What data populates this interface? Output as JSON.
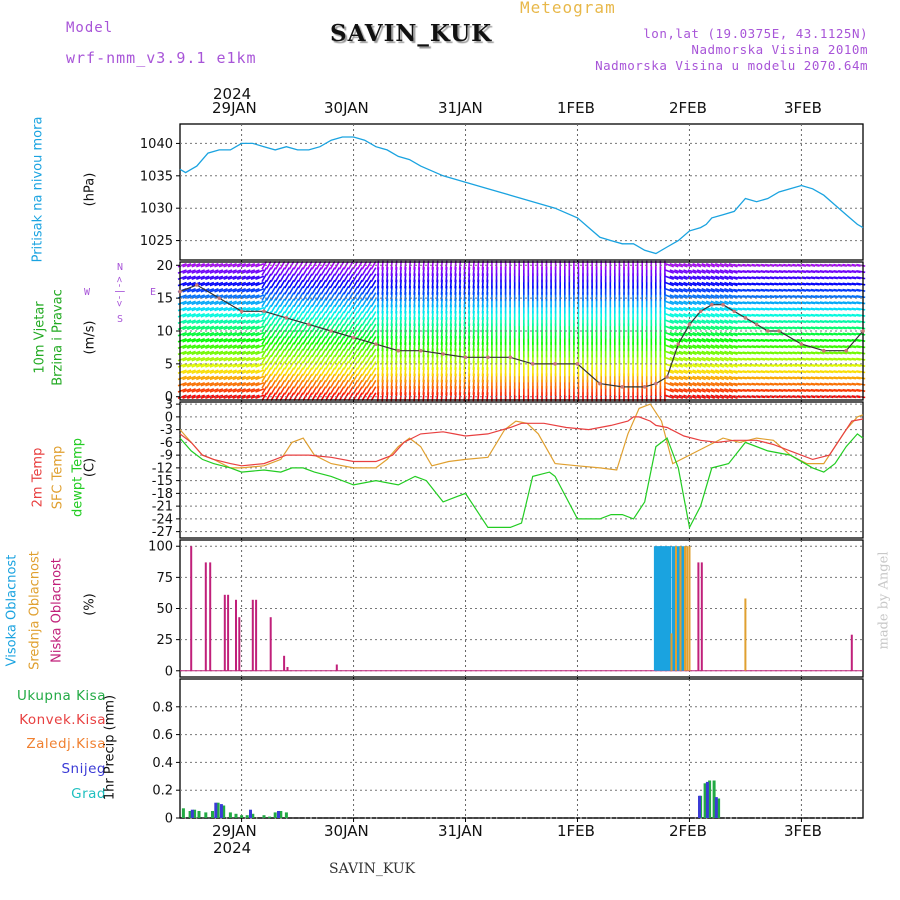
{
  "header": {
    "model_label": "Model",
    "model_name": "wrf-nmm_v3.9.1 e1km",
    "station_title": "SAVIN_KUK",
    "meteogram_label": "Meteogram",
    "lonlat": "lon,lat (19.0375E, 43.1125N)",
    "altitude": "Nadmorska Visina 2010m",
    "model_altitude": "Nadmorska Visina u modelu 2070.64m",
    "year_top": "2024",
    "year_bottom": "2024",
    "footer_station": "SAVIN_KUK",
    "watermark": "made by Angel"
  },
  "days": [
    "29JAN",
    "30JAN",
    "31JAN",
    "1FEB",
    "2FEB",
    "3FEB"
  ],
  "panel_labels": {
    "pressure": [
      "Pritisak na nivou mora",
      "(hPa)"
    ],
    "wind": [
      "10m Vjetar",
      "Brzina i Pravac",
      "(m/s)"
    ],
    "compass": [
      "W",
      "<-|->",
      "E",
      "N",
      "S"
    ],
    "temp": [
      "2m Temp",
      "SFC Temp",
      "dewpt Temp",
      "(C)"
    ],
    "cloud": [
      "Visoka Oblacnost",
      "Srednja Oblacnost",
      "Niska Oblacnost",
      "(%)"
    ],
    "precip": [
      "Ukupna Kisa",
      "Konvek.Kisa",
      "Zaledj.Kisa",
      "Snijeg",
      "Grad",
      "1hr Precip (mm)"
    ]
  },
  "colors": {
    "pressure": "#1aa3e0",
    "temp2m": "#e84040",
    "sfc": "#e0a030",
    "dewpt": "#22cc22",
    "cloud_high": "#1aa3e0",
    "cloud_mid": "#e0a030",
    "cloud_low": "#c0207a",
    "rain_total": "#22aa44",
    "convective": "#e84040",
    "freezing": "#f08030",
    "snow": "#3b3bd6",
    "hail": "#20c0c0",
    "purple_text": "#a855d8",
    "gold_text": "#e8b84a"
  },
  "chart_data": [
    {
      "type": "line",
      "name": "pressure",
      "x_unit": "days from 00 UTC 29JAN",
      "xlim": [
        -0.55,
        5.55
      ],
      "ylim": [
        1022,
        1043
      ],
      "yticks": [
        1025,
        1030,
        1035,
        1040
      ],
      "ylabel": "(hPa)",
      "series": [
        {
          "name": "Pritisak na nivou mora",
          "x": [
            -0.55,
            -0.5,
            -0.45,
            -0.4,
            -0.3,
            -0.2,
            -0.1,
            0,
            0.1,
            0.2,
            0.3,
            0.4,
            0.5,
            0.6,
            0.7,
            0.8,
            0.9,
            1.0,
            1.1,
            1.2,
            1.3,
            1.4,
            1.5,
            1.6,
            1.8,
            2.0,
            2.2,
            2.4,
            2.6,
            2.8,
            3.0,
            3.1,
            3.2,
            3.3,
            3.4,
            3.5,
            3.6,
            3.7,
            3.8,
            3.9,
            4.0,
            4.1,
            4.15,
            4.2,
            4.3,
            4.4,
            4.5,
            4.6,
            4.7,
            4.8,
            4.9,
            5.0,
            5.1,
            5.2,
            5.3,
            5.4,
            5.5,
            5.55
          ],
          "y": [
            1036,
            1035.5,
            1036,
            1036.5,
            1038.5,
            1039,
            1039,
            1040,
            1040,
            1039.5,
            1039,
            1039.5,
            1039,
            1039,
            1039.5,
            1040.5,
            1041,
            1041,
            1040.5,
            1039.5,
            1039,
            1038,
            1037.5,
            1036.5,
            1035,
            1034,
            1033,
            1032,
            1031,
            1030,
            1028.5,
            1027,
            1025.5,
            1025,
            1024.5,
            1024.5,
            1023.5,
            1023,
            1024,
            1025,
            1026.5,
            1027,
            1027.5,
            1028.5,
            1029,
            1029.5,
            1031.5,
            1031,
            1031.5,
            1032.5,
            1033,
            1033.5,
            1033,
            1032,
            1030.5,
            1029,
            1027.5,
            1027
          ]
        }
      ]
    },
    {
      "type": "line",
      "name": "wind",
      "x_unit": "days from 00 UTC 29JAN",
      "xlim": [
        -0.55,
        5.55
      ],
      "ylim": [
        -0.5,
        20.5
      ],
      "yticks": [
        0,
        5,
        10,
        15,
        20
      ],
      "ylabel": "(m/s)",
      "series": [
        {
          "name": "Brzina",
          "x": [
            -0.55,
            -0.4,
            -0.2,
            0,
            0.2,
            0.4,
            0.6,
            0.8,
            1.0,
            1.2,
            1.4,
            1.6,
            1.8,
            2.0,
            2.2,
            2.4,
            2.6,
            2.8,
            3.0,
            3.2,
            3.4,
            3.6,
            3.7,
            3.8,
            3.9,
            4.0,
            4.1,
            4.2,
            4.3,
            4.4,
            4.5,
            4.6,
            4.7,
            4.8,
            5.0,
            5.2,
            5.4,
            5.55
          ],
          "y": [
            16,
            17,
            15,
            13,
            13,
            12,
            11,
            10,
            9,
            8,
            7,
            7,
            6.5,
            6,
            6,
            6,
            5,
            5,
            5,
            2,
            1.5,
            1.5,
            2,
            3,
            8,
            11,
            13,
            14,
            14,
            13,
            12,
            11,
            10,
            10,
            8,
            7,
            7,
            10
          ]
        }
      ],
      "barb_direction": [
        {
          "from": -0.55,
          "to": 0.2,
          "dir_deg": 200
        },
        {
          "from": 0.2,
          "to": 1.2,
          "dir_deg": 240
        },
        {
          "from": 1.2,
          "to": 2.2,
          "dir_deg": 265
        },
        {
          "from": 2.2,
          "to": 3.8,
          "dir_deg": 90
        },
        {
          "from": 3.8,
          "to": 4.4,
          "dir_deg": 160
        },
        {
          "from": 4.4,
          "to": 5.55,
          "dir_deg": 350
        }
      ]
    },
    {
      "type": "line",
      "name": "temperature",
      "x_unit": "days from 00 UTC 29JAN",
      "xlim": [
        -0.55,
        5.55
      ],
      "ylim": [
        -28.5,
        3.5
      ],
      "yticks": [
        3,
        0,
        -3,
        -6,
        -9,
        -12,
        -15,
        -18,
        -21,
        -24,
        -27
      ],
      "ylabel": "(C)",
      "series": [
        {
          "name": "2m Temp",
          "x": [
            -0.55,
            -0.45,
            -0.35,
            -0.25,
            -0.1,
            0,
            0.2,
            0.3,
            0.4,
            0.6,
            0.8,
            1.0,
            1.2,
            1.35,
            1.45,
            1.6,
            1.8,
            1.9,
            2.0,
            2.2,
            2.4,
            2.5,
            2.7,
            2.9,
            3.1,
            3.3,
            3.45,
            3.5,
            3.55,
            3.65,
            3.7,
            3.8,
            3.95,
            4.1,
            4.25,
            4.4,
            4.6,
            4.75,
            4.9,
            5.1,
            5.25,
            5.35,
            5.45,
            5.55
          ],
          "y": [
            -4,
            -6,
            -9,
            -10,
            -11,
            -11.5,
            -11,
            -10,
            -9,
            -9,
            -9.5,
            -10.5,
            -10.5,
            -9,
            -6,
            -4,
            -3.5,
            -4,
            -4.5,
            -4,
            -2.5,
            -1.5,
            -1.5,
            -2.5,
            -3,
            -2,
            -1,
            0,
            0,
            -1,
            -2,
            -2.5,
            -4.5,
            -5.5,
            -6,
            -5.5,
            -5.5,
            -6.5,
            -8,
            -10,
            -9,
            -5,
            -1,
            -0.5
          ]
        },
        {
          "name": "SFC Temp",
          "x": [
            -0.55,
            -0.45,
            -0.35,
            -0.25,
            -0.1,
            0,
            0.2,
            0.35,
            0.45,
            0.55,
            0.65,
            0.8,
            1.0,
            1.2,
            1.3,
            1.4,
            1.5,
            1.6,
            1.7,
            1.85,
            2.0,
            2.2,
            2.35,
            2.45,
            2.55,
            2.65,
            2.8,
            3.0,
            3.2,
            3.35,
            3.45,
            3.55,
            3.65,
            3.75,
            3.85,
            4.0,
            4.15,
            4.3,
            4.45,
            4.6,
            4.75,
            4.9,
            5.05,
            5.2,
            5.3,
            5.4,
            5.5,
            5.55
          ],
          "y": [
            -3,
            -6,
            -9,
            -10,
            -12,
            -12,
            -11.5,
            -10,
            -6,
            -5,
            -9,
            -11,
            -12,
            -12,
            -10,
            -7,
            -5,
            -7,
            -11.5,
            -10.5,
            -10,
            -9.5,
            -3,
            -1,
            -1.5,
            -4,
            -11,
            -11.5,
            -12,
            -12.5,
            -4,
            2,
            3,
            -1,
            -11,
            -9,
            -7,
            -5,
            -6,
            -5,
            -5.5,
            -9,
            -11,
            -11,
            -7,
            -3,
            0,
            0.5
          ]
        },
        {
          "name": "dewpt Temp",
          "x": [
            -0.55,
            -0.45,
            -0.35,
            -0.25,
            -0.1,
            0,
            0.2,
            0.35,
            0.45,
            0.55,
            0.65,
            0.8,
            1.0,
            1.2,
            1.4,
            1.55,
            1.65,
            1.8,
            1.9,
            2.0,
            2.2,
            2.4,
            2.5,
            2.6,
            2.75,
            2.8,
            3.0,
            3.2,
            3.3,
            3.4,
            3.5,
            3.6,
            3.7,
            3.8,
            3.9,
            4.0,
            4.1,
            4.2,
            4.35,
            4.5,
            4.7,
            4.9,
            5.1,
            5.2,
            5.3,
            5.4,
            5.5,
            5.55
          ],
          "y": [
            -5,
            -8,
            -10,
            -11,
            -12,
            -13,
            -12.5,
            -13,
            -12,
            -12,
            -13,
            -14,
            -16,
            -15,
            -16,
            -14,
            -15,
            -20,
            -19,
            -18,
            -26,
            -26,
            -25,
            -14,
            -13,
            -14,
            -24,
            -24,
            -23,
            -23,
            -24,
            -20,
            -7,
            -5,
            -12,
            -26,
            -21,
            -12,
            -11,
            -6,
            -8,
            -9,
            -12,
            -13,
            -11,
            -7,
            -4,
            -5
          ]
        }
      ]
    },
    {
      "type": "bar",
      "name": "cloud_cover",
      "x_unit": "days from 00 UTC 29JAN",
      "xlim": [
        -0.55,
        5.55
      ],
      "ylim": [
        -5,
        105
      ],
      "yticks": [
        0,
        25,
        50,
        75,
        100
      ],
      "ylabel": "(%)",
      "series": [
        {
          "name": "Visoka Oblacnost",
          "x": [
            3.7,
            3.72,
            3.74,
            3.76,
            3.78,
            3.8,
            3.82,
            3.86,
            3.9,
            3.94
          ],
          "values": [
            100,
            100,
            100,
            100,
            100,
            100,
            100,
            100,
            100,
            100
          ]
        },
        {
          "name": "Srednja Oblacnost",
          "x": [
            3.84,
            3.88,
            3.92,
            3.96,
            3.98,
            4.0,
            4.5
          ],
          "values": [
            30,
            100,
            100,
            100,
            100,
            100,
            58
          ]
        },
        {
          "name": "Niska Oblacnost",
          "x": [
            -0.45,
            -0.32,
            -0.28,
            -0.15,
            -0.12,
            -0.05,
            -0.02,
            0.1,
            0.13,
            0.26,
            0.38,
            0.41,
            0.85,
            4.08,
            4.11,
            5.45
          ],
          "values": [
            100,
            87,
            87,
            61,
            61,
            57,
            43,
            57,
            57,
            43,
            12,
            3,
            5,
            87,
            87,
            29
          ]
        }
      ]
    },
    {
      "type": "bar",
      "name": "precipitation",
      "x_unit": "days from 00 UTC 29JAN",
      "xlim": [
        -0.55,
        5.55
      ],
      "ylim": [
        0,
        1.0
      ],
      "yticks": [
        0,
        0.2,
        0.4,
        0.6,
        0.8
      ],
      "ylabel": "1hr Precip (mm)",
      "series": [
        {
          "name": "Ukupna Kisa",
          "x": [
            -0.52,
            -0.46,
            -0.42,
            -0.38,
            -0.32,
            -0.26,
            -0.21,
            -0.16,
            -0.1,
            -0.05,
            0.0,
            0.05,
            0.1,
            0.2,
            0.25,
            0.3,
            0.35,
            0.4,
            4.1,
            4.14,
            4.18,
            4.22,
            4.26
          ],
          "values": [
            0.07,
            0.05,
            0.06,
            0.05,
            0.04,
            0.05,
            0.11,
            0.09,
            0.04,
            0.03,
            0.02,
            0.02,
            0.03,
            0.02,
            0.01,
            0.04,
            0.05,
            0.04,
            0.16,
            0.25,
            0.27,
            0.27,
            0.14
          ]
        },
        {
          "name": "Snijeg",
          "x": [
            -0.44,
            -0.23,
            -0.18,
            0.08,
            0.33,
            4.09,
            4.16,
            4.24
          ],
          "values": [
            0.06,
            0.11,
            0.1,
            0.06,
            0.05,
            0.16,
            0.26,
            0.15
          ]
        }
      ]
    }
  ]
}
